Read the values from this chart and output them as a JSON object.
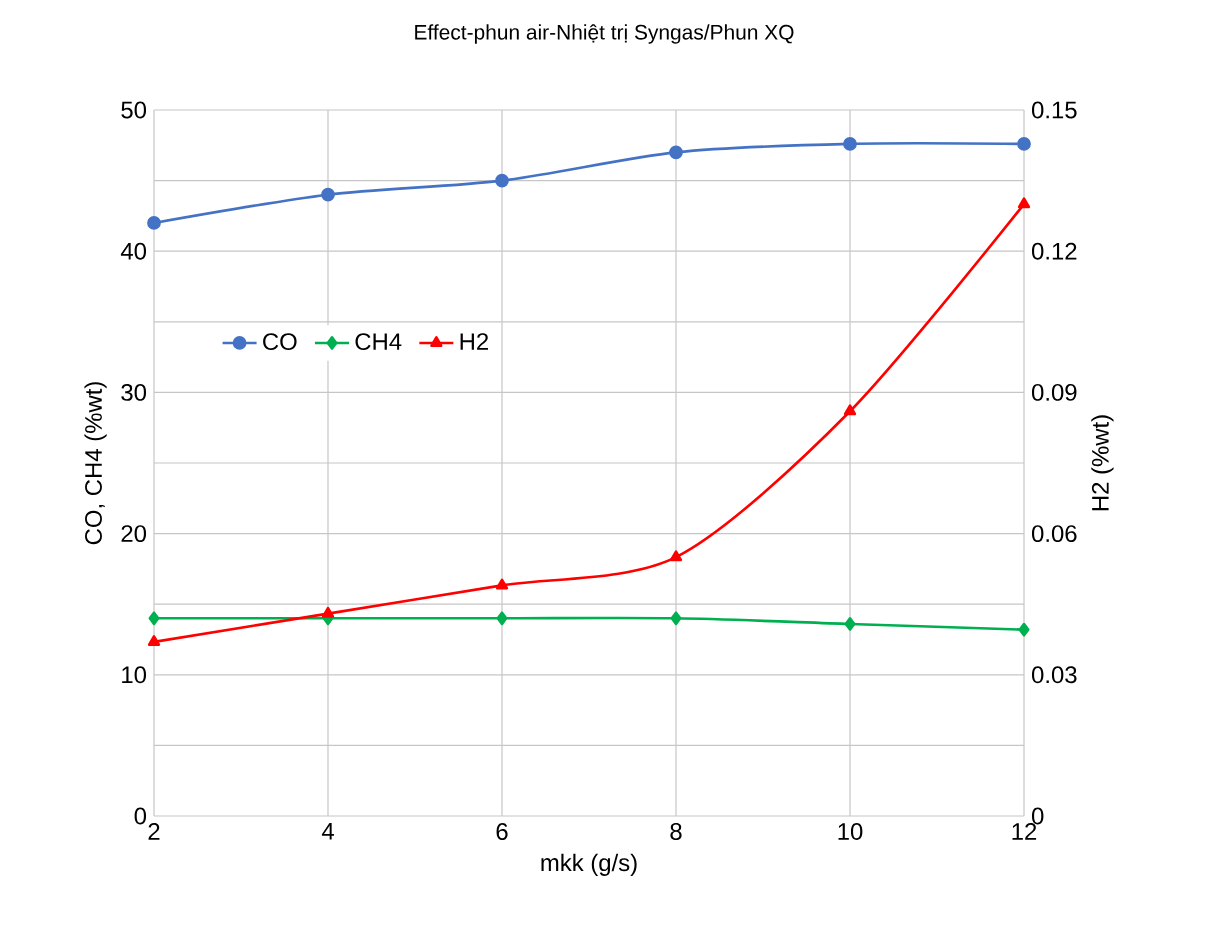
{
  "chart_data": {
    "type": "line",
    "title": "Effect-phun air-Nhiệt trị Syngas/Phun XQ",
    "xlabel": "mkk (g/s)",
    "ylabel": "CO, CH4 (%wt)",
    "y2label": "H2 (%wt)",
    "x": [
      2,
      4,
      6,
      8,
      10,
      12
    ],
    "xlim": [
      2,
      12
    ],
    "xticks": [
      2,
      4,
      6,
      8,
      10,
      12
    ],
    "ylim": [
      0,
      50
    ],
    "yticks": [
      0,
      {
        "value": 5,
        "label": null
      },
      10,
      {
        "value": 15,
        "label": null
      },
      20,
      {
        "value": 25,
        "label": null
      },
      30,
      {
        "value": 35,
        "label": null
      },
      40,
      {
        "value": 45,
        "label": null
      },
      50
    ],
    "y2lim": [
      0,
      0.15
    ],
    "y2ticks": [
      0,
      0.03,
      0.06,
      0.09,
      0.12,
      0.15
    ],
    "grid": true,
    "legend": "left",
    "series": [
      {
        "name": "CO",
        "color": "#4472c4",
        "marker": "circle",
        "values": [
          42,
          44,
          45,
          47,
          47.6,
          47.6
        ]
      },
      {
        "name": "CH4",
        "color": "#00b050",
        "marker": "diamond",
        "values": [
          14,
          14,
          14,
          14,
          13.6,
          13.2
        ]
      },
      {
        "name": "H2",
        "color": "#ff0000",
        "marker": "triangle",
        "axis": "y2",
        "values": [
          0.037,
          0.043,
          0.049,
          0.055,
          0.086,
          0.13
        ]
      }
    ]
  }
}
